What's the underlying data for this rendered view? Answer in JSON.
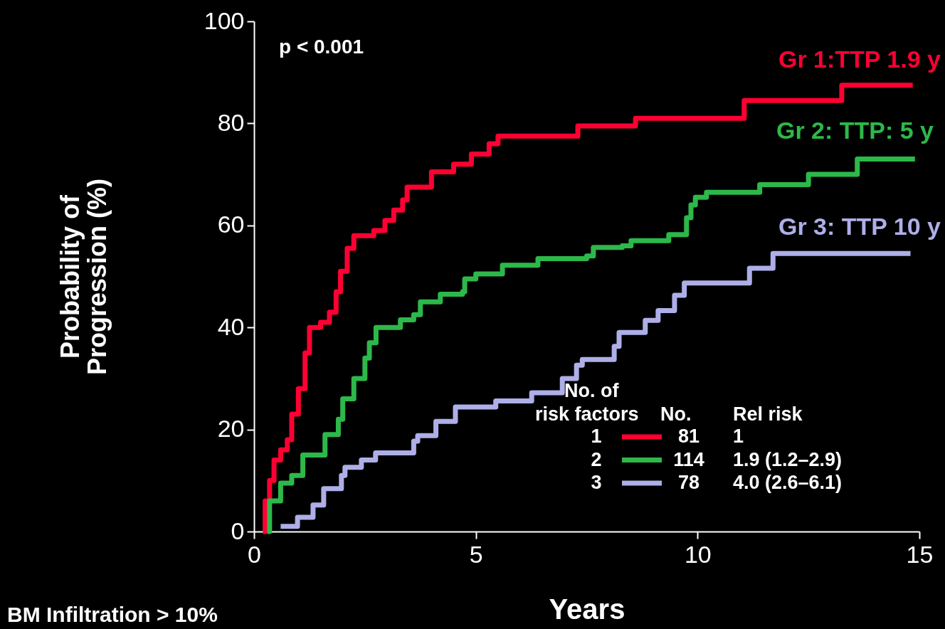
{
  "chart_data": {
    "type": "step",
    "xlabel": "Years",
    "ylabel": "Probability of\nProgression (%)",
    "xlim": [
      0,
      15
    ],
    "xticks": [
      0,
      5,
      10,
      15
    ],
    "ylim": [
      0,
      100
    ],
    "yticks": [
      0,
      20,
      40,
      60,
      80,
      100
    ],
    "grid": false,
    "legend": "bottom right",
    "line_style": "solid",
    "series": [
      {
        "name": "1",
        "color": "#ff0033",
        "x": [
          0.2,
          0.25,
          0.35,
          0.45,
          0.6,
          0.75,
          0.85,
          1.0,
          1.15,
          1.25,
          1.5,
          1.7,
          1.85,
          1.95,
          2.1,
          2.25,
          2.7,
          2.95,
          3.15,
          3.35,
          3.45,
          4.0,
          4.5,
          4.9,
          5.3,
          5.5,
          7.3,
          8.6,
          11.05,
          13.25,
          14.85
        ],
        "values": [
          0,
          6,
          10,
          14,
          16,
          18,
          23,
          28,
          35,
          40,
          41,
          43,
          47,
          51,
          55.5,
          58,
          59,
          61,
          63,
          65,
          67.5,
          70.5,
          72,
          74,
          76,
          77.5,
          79.5,
          81,
          84.5,
          87.5,
          87.5
        ]
      },
      {
        "name": "2",
        "color": "#2db84a",
        "x": [
          0.3,
          0.35,
          0.6,
          0.85,
          1.1,
          1.6,
          1.9,
          2.0,
          2.25,
          2.5,
          2.6,
          2.75,
          3.3,
          3.6,
          3.75,
          4.2,
          4.7,
          4.75,
          5.0,
          5.6,
          6.4,
          7.5,
          7.65,
          8.3,
          8.5,
          9.35,
          9.75,
          9.85,
          9.95,
          10.2,
          11.4,
          12.5,
          13.6,
          14.9
        ],
        "values": [
          0,
          6,
          9.5,
          11,
          15,
          19,
          22,
          26,
          30,
          34,
          37,
          40,
          41.5,
          42.5,
          45,
          46.5,
          47,
          49.5,
          50.5,
          52.2,
          53.5,
          54,
          55.7,
          56,
          57,
          58.2,
          61.5,
          64,
          65.5,
          66.5,
          68,
          70,
          73,
          73
        ]
      },
      {
        "name": "3",
        "color": "#aeaee8",
        "x": [
          0.6,
          0.98,
          1.33,
          1.57,
          1.97,
          2.05,
          2.42,
          2.74,
          3.6,
          3.69,
          4.1,
          4.54,
          5.45,
          6.26,
          6.95,
          7.27,
          7.4,
          8.12,
          8.23,
          8.82,
          9.11,
          9.48,
          9.7,
          11.17,
          11.7,
          14.8
        ],
        "values": [
          1,
          2.8,
          5.2,
          8.4,
          11,
          12.6,
          14,
          15.4,
          17.7,
          18.8,
          21.6,
          24.4,
          25.6,
          27.2,
          30,
          32.6,
          33.7,
          36.3,
          39,
          41.4,
          43.3,
          46.3,
          48.7,
          51.6,
          54.5,
          54.5
        ]
      }
    ],
    "annotations": [
      "p < 0.001",
      "Gr 1:TTP 1.9 y",
      "Gr 2: TTP: 5 y",
      "Gr 3: TTP 10 y",
      "No. of",
      "risk factors",
      "No.",
      "Rel risk",
      "81",
      "114",
      "78",
      "1",
      "1.9 (1.2–2.9)",
      "4.0 (2.6–6.1)",
      "BM Infiltration > 10%"
    ]
  }
}
